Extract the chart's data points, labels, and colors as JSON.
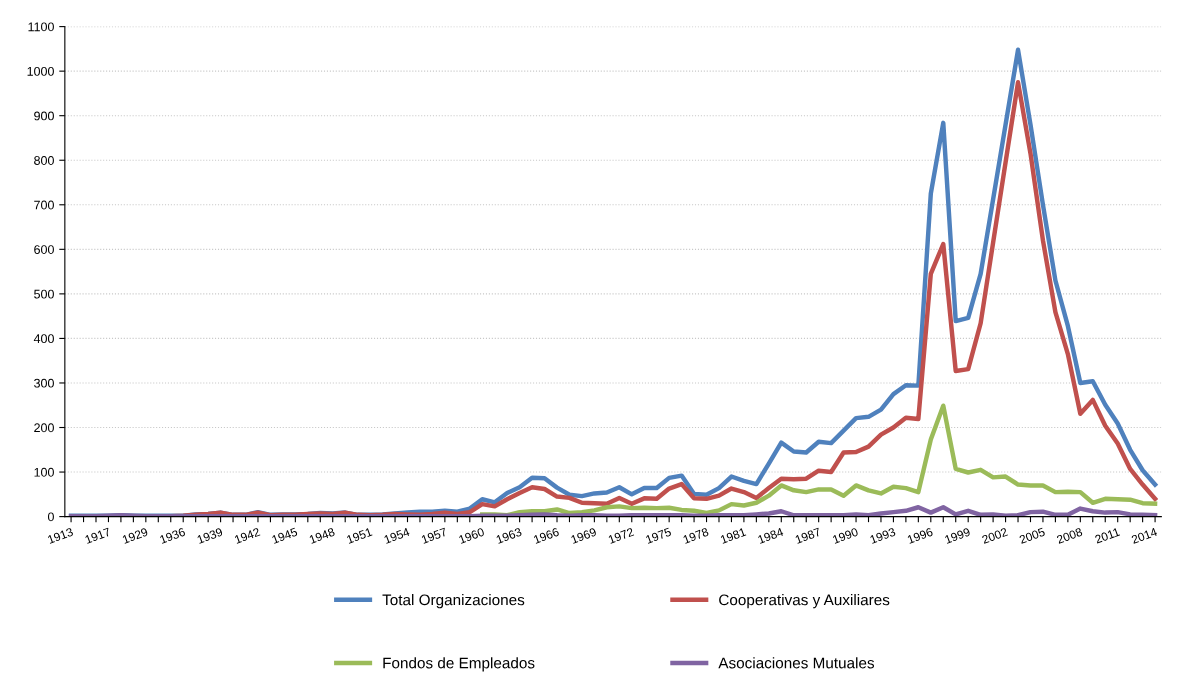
{
  "chart_data": {
    "type": "line",
    "categories": [
      "1913",
      null,
      null,
      "1917",
      null,
      null,
      "1929",
      null,
      null,
      "1936",
      null,
      null,
      "1939",
      null,
      null,
      "1942",
      null,
      null,
      "1945",
      null,
      null,
      "1948",
      null,
      null,
      "1951",
      null,
      null,
      "1954",
      null,
      null,
      "1957",
      null,
      null,
      "1960",
      null,
      null,
      "1963",
      null,
      null,
      "1966",
      null,
      null,
      "1969",
      null,
      null,
      "1972",
      null,
      null,
      "1975",
      null,
      null,
      "1978",
      null,
      null,
      "1981",
      null,
      null,
      "1984",
      null,
      null,
      "1987",
      null,
      null,
      "1990",
      null,
      null,
      "1993",
      null,
      null,
      "1996",
      null,
      null,
      "1999",
      null,
      null,
      "2002",
      null,
      null,
      "2005",
      null,
      null,
      "2008",
      null,
      null,
      "2011",
      null,
      null,
      "2014"
    ],
    "series": [
      {
        "name": "Total Organizaciones",
        "color": "#4f81bd",
        "values": [
          2,
          2,
          2,
          2,
          3,
          2,
          2,
          2,
          2,
          2,
          5,
          6,
          9,
          4,
          4,
          10,
          4,
          5,
          5,
          6,
          8,
          7,
          9,
          4,
          4,
          5,
          7,
          9,
          11,
          11,
          13,
          11,
          18,
          39,
          32,
          53,
          66,
          87,
          86,
          65,
          49,
          46,
          52,
          54,
          66,
          50,
          64,
          64,
          87,
          92,
          51,
          49,
          64,
          90,
          80,
          73,
          119,
          166,
          146,
          144,
          168,
          165,
          193,
          221,
          224,
          240,
          275,
          295,
          294,
          725,
          884,
          439,
          446,
          545,
          712,
          880,
          1048,
          880,
          700,
          530,
          428,
          300,
          304,
          251,
          209,
          150,
          104,
          72
        ]
      },
      {
        "name": "Cooperativas y Auxiliares",
        "color": "#c0504d",
        "values": [
          null,
          null,
          null,
          null,
          null,
          null,
          null,
          null,
          1,
          2,
          4,
          6,
          9,
          4,
          4,
          9,
          3,
          4,
          4,
          6,
          7,
          6,
          9,
          4,
          3,
          4,
          6,
          5,
          4,
          6,
          9,
          6,
          10,
          28,
          23,
          39,
          53,
          66,
          62,
          45,
          42,
          31,
          30,
          29,
          42,
          29,
          41,
          40,
          63,
          73,
          41,
          40,
          47,
          63,
          55,
          42,
          64,
          85,
          84,
          85,
          103,
          100,
          144,
          145,
          157,
          184,
          200,
          222,
          219,
          545,
          612,
          327,
          331,
          434,
          615,
          795,
          975,
          815,
          620,
          459,
          365,
          231,
          262,
          204,
          164,
          107,
          72,
          40
        ]
      },
      {
        "name": "Fondos de Empleados",
        "color": "#9bbb59",
        "values": [
          null,
          null,
          null,
          null,
          null,
          null,
          null,
          null,
          null,
          null,
          null,
          null,
          null,
          null,
          null,
          null,
          null,
          null,
          null,
          null,
          null,
          null,
          null,
          null,
          null,
          null,
          null,
          null,
          null,
          null,
          null,
          null,
          null,
          5,
          5,
          3,
          10,
          12,
          12,
          16,
          8,
          10,
          14,
          21,
          23,
          19,
          20,
          19,
          20,
          15,
          13,
          8,
          14,
          28,
          25,
          31,
          47,
          70,
          59,
          55,
          61,
          61,
          47,
          70,
          59,
          52,
          67,
          64,
          55,
          173,
          249,
          107,
          99,
          105,
          88,
          90,
          72,
          70,
          70,
          55,
          56,
          55,
          31,
          40,
          39,
          38,
          30,
          29
        ]
      },
      {
        "name": "Asociaciones Mutuales",
        "color": "#8064a2",
        "values": [
          1,
          1,
          1,
          2,
          3,
          2,
          1,
          1,
          1,
          1,
          1,
          1,
          1,
          1,
          1,
          1,
          1,
          1,
          1,
          1,
          1,
          1,
          1,
          1,
          1,
          1,
          1,
          1,
          1,
          1,
          1,
          1,
          1,
          2,
          2,
          2,
          3,
          4,
          5,
          3,
          2,
          3,
          3,
          2,
          2,
          3,
          3,
          3,
          3,
          3,
          2,
          2,
          3,
          3,
          3,
          5,
          7,
          12,
          3,
          3,
          3,
          3,
          3,
          5,
          3,
          7,
          10,
          13,
          21,
          9,
          21,
          5,
          13,
          4,
          5,
          2,
          3,
          10,
          11,
          4,
          4,
          18,
          12,
          9,
          10,
          5,
          4,
          3
        ]
      }
    ],
    "ylim": [
      0,
      1100
    ],
    "yticks": [
      0,
      100,
      200,
      300,
      400,
      500,
      600,
      700,
      800,
      900,
      1000,
      1100
    ],
    "grid": "y",
    "legend": "bottom",
    "marker": "none",
    "line_style": "solid"
  }
}
